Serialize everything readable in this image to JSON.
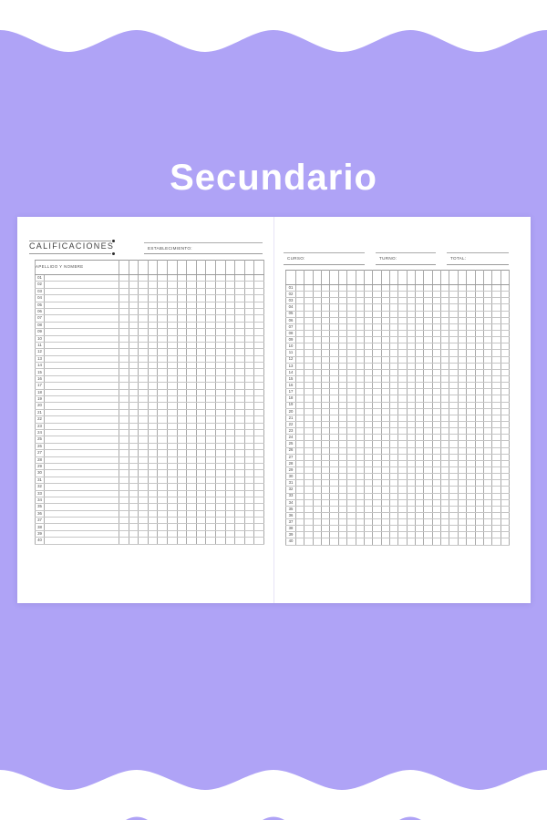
{
  "colors": {
    "background_purple": "#afa3f6",
    "card_white": "#ffffff",
    "rule_gray": "#9b9b9b",
    "grid_gray": "#a9a9a9",
    "text_dark": "#3f3f3f"
  },
  "title": {
    "text": "Secundario"
  },
  "left_page": {
    "section_title": "CALIFICACIONES",
    "establishment_label": "ESTABLECIMIENTO:",
    "table": {
      "name_header": "APELLIDO Y NOMBRE",
      "grid_columns": 15
    }
  },
  "right_page": {
    "fields": [
      {
        "label": "CURSO:"
      },
      {
        "label": "TURNO:"
      },
      {
        "label": "TOTAL:"
      }
    ],
    "table": {
      "grid_columns": 25
    }
  },
  "row_labels": [
    "01",
    "02",
    "03",
    "04",
    "05",
    "06",
    "07",
    "08",
    "09",
    "10",
    "11",
    "12",
    "13",
    "14",
    "15",
    "16",
    "17",
    "18",
    "19",
    "20",
    "21",
    "22",
    "23",
    "24",
    "25",
    "26",
    "27",
    "28",
    "29",
    "30",
    "31",
    "32",
    "33",
    "34",
    "35",
    "36",
    "37",
    "38",
    "39",
    "40"
  ]
}
